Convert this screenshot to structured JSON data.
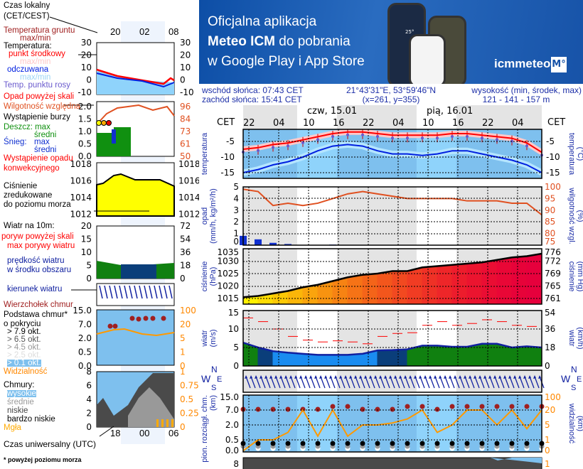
{
  "banner": {
    "line1": "Oficjalna aplikacja",
    "line2_bold": "Meteo ICM",
    "line2_rest": " do pobrania",
    "line3": "w Google Play i App Store",
    "logo_text": "icmmeteo",
    "logo_badge": "M°",
    "phone_temp": "25°"
  },
  "info": {
    "sunrise": "wschód słońca: 07:43 CET",
    "sunset": "zachód słońca: 15:41 CET",
    "coords": "21°43'31\"E, 53°59'46\"N",
    "grid": "(x=261,  y=355)",
    "elev_label": "wysokość (min, środek, max)",
    "elev_values": "121 - 141 - 157 m"
  },
  "axis": {
    "cet": "CET",
    "days": [
      "czw, 15.01",
      "pią, 16.01"
    ],
    "hours": [
      "22",
      "04",
      "10",
      "16",
      "22",
      "04",
      "10",
      "16",
      "22",
      "04"
    ]
  },
  "labels": {
    "temp_left": "temperatura",
    "temp_right": "(°C)",
    "temp_right2": "temperatura",
    "precip_left": "opad",
    "precip_left2": "(mm/h, kg/m²/h)",
    "precip_right": "(%)",
    "precip_right2": "wilgotność wzgl.",
    "press_left": "ciśnienie",
    "press_left2": "(hPa)",
    "press_right": "(mm Hg)",
    "press_right2": "ciśnienie",
    "wind_left": "wiatr",
    "wind_left2": "(m/s)",
    "wind_right": "(km/h)",
    "wind_right2": "wiatr",
    "compass": {
      "w": "W",
      "s": "S",
      "n": "N",
      "e": "E"
    },
    "cloud_left": "pion. rozciągł. chm.",
    "cloud_left2": "(km)",
    "cloud_right": "(km)",
    "cloud_right2": "widzialność",
    "cloud_left_cut": "e"
  },
  "legend": {
    "local_time": "Czas lokalny",
    "local_time2": "(CET/CEST)",
    "mini_hours": [
      "20",
      "02",
      "08"
    ],
    "ground_temp": "Temperatura gruntu",
    "ground_temp2": "max/min",
    "temperature": "Temperatura:",
    "mid_point": "punkt środkowy",
    "maxmin": "max/min",
    "feels": "odczuwana",
    "maxmin2": "max/min",
    "dew": "Temp. punktu rosy",
    "precip_over": "Opad powyżej skali",
    "humidity": "Wilgotność względna",
    "storm": "Wystąpienie burzy",
    "rain": "Deszcz: max",
    "rain_mean": "średni",
    "snow": "Śnieg:",
    "snow_max": "max",
    "snow_mean": "średni",
    "conv": "Wystąpienie opadu",
    "conv2": "konwekcyjnego",
    "pressure": "Ciśnienie",
    "pressure2": "zredukowane",
    "pressure3": "do poziomu morza",
    "wind10": "Wiatr na 10m:",
    "gust_over": "poryw powyżej skali",
    "gust_max": "max porywy wiatru",
    "wind_speed": "prędkość wiatru",
    "wind_speed2": "w środku obszaru",
    "wind_dir": "kierunek wiatru",
    "cloud_top": "Wierzchołek chmur",
    "cloud_base": "Podstawa chmur*",
    "cloud_base2": "o pokryciu",
    "okt": [
      "> 7.9 okt.",
      "> 6.5 okt.",
      "> 4.5 okt.",
      "> 2.5 okt.",
      "> 0.1 okt."
    ],
    "visibility": "Widzialność",
    "clouds": "Chmury:",
    "high": "wysokie",
    "mid": "średnie",
    "low": "niskie",
    "vlow": "bardzo niskie",
    "fog": "Mgła",
    "utc": "Czas uniwersalny (UTC)",
    "utc_hours": [
      "18",
      "00",
      "06"
    ],
    "footnote": "* powyżej poziomu morza",
    "ticks": {
      "temp": [
        "30",
        "20",
        "10",
        "0",
        "-10"
      ],
      "precip": [
        "2.0",
        "1.5",
        "1.0",
        "0.5",
        "0.0"
      ],
      "hum": [
        "96",
        "84",
        "73",
        "61",
        "50"
      ],
      "press": [
        "1018",
        "1016",
        "1014",
        "1012"
      ],
      "wind": [
        "20",
        "15",
        "10",
        "5",
        "0"
      ],
      "windkmh": [
        "72",
        "54",
        "36",
        "18",
        "0"
      ],
      "cloud": [
        "15.0",
        "7.0",
        "2.0",
        "0.5",
        "0.0"
      ],
      "vis": [
        "100",
        "20",
        "5",
        "1",
        "0"
      ],
      "ctype": [
        "8",
        "6",
        "4",
        "2",
        "0"
      ],
      "ctype_r": [
        "1",
        "0.75",
        "0.5",
        "0.25",
        "0"
      ]
    }
  },
  "chart_data": [
    {
      "type": "line",
      "title": "",
      "xlabel": "",
      "ylabel": "temperatura (°C)",
      "x_start": "śr 21:00",
      "x_step_hours": 3,
      "ylim": [
        -17,
        0
      ],
      "yticks": [
        -5,
        -10,
        -15
      ],
      "series": [
        {
          "name": "punkt środkowy",
          "color": "#ff0000",
          "values": [
            -7.5,
            -7,
            -6,
            -5.5,
            -4.5,
            -3.5,
            -2.5,
            -2,
            -2,
            -2.5,
            -3,
            -3,
            -3,
            -3,
            -2.5,
            -2.5,
            -3,
            -3.5,
            -4,
            -5.5,
            -8.5
          ]
        },
        {
          "name": "odczuwana",
          "color": "#0020e0",
          "values": [
            -15,
            -14,
            -12.5,
            -11.5,
            -10,
            -8,
            -6.5,
            -6,
            -6.5,
            -8,
            -9,
            -9,
            -9.5,
            -9,
            -8,
            -8,
            -9,
            -10,
            -11,
            -12.5,
            -15
          ]
        }
      ]
    },
    {
      "type": "bar+line",
      "ylabel": "opad (mm/h, kg/m²/h)",
      "y2label": "(%) wilgotność wzgl.",
      "ylim": [
        0,
        5
      ],
      "y2lim": [
        75,
        100
      ],
      "yticks": [
        0,
        1,
        2,
        3,
        4,
        5
      ],
      "y2ticks": [
        75,
        80,
        85,
        90,
        95,
        100
      ],
      "precip": [
        0.8,
        0.5,
        0.2,
        0.1,
        0,
        0,
        0.05,
        0,
        0,
        0,
        0,
        0,
        0,
        0,
        0,
        0.02,
        0,
        0,
        0,
        0,
        0
      ],
      "humidity": [
        99,
        98,
        92,
        93,
        92,
        93,
        95,
        97,
        98,
        97,
        96,
        95,
        95,
        95,
        95,
        94,
        94,
        94,
        93,
        93,
        88
      ]
    },
    {
      "type": "area",
      "ylabel": "ciśnienie (hPa)",
      "y2label": "(mm Hg)",
      "ylim": [
        1013,
        1035
      ],
      "yticks": [
        1015,
        1020,
        1025,
        1030,
        1035
      ],
      "y2ticks": [
        761,
        765,
        769,
        772,
        776
      ],
      "values": [
        1015.5,
        1016,
        1017,
        1018,
        1019.5,
        1020.5,
        1022,
        1023.5,
        1024.5,
        1025,
        1026,
        1026,
        1027.5,
        1028,
        1028.5,
        1029,
        1029.5,
        1030.5,
        1031.5,
        1032,
        1033
      ]
    },
    {
      "type": "line",
      "ylabel": "wiatr (m/s)",
      "y2label": "(km/h)",
      "ylim": [
        0,
        15
      ],
      "yticks": [
        0,
        5,
        10,
        15
      ],
      "y2ticks": [
        0,
        18,
        36,
        54
      ],
      "series": [
        {
          "name": "prędkość wiatru",
          "values": [
            6.3,
            5,
            4,
            3.6,
            3.3,
            3,
            3,
            3,
            3.3,
            4.2,
            4.3,
            4.5,
            5.5,
            5.5,
            5.2,
            5.2,
            6,
            6,
            5,
            5.3,
            5
          ]
        },
        {
          "name": "max porywy wiatru",
          "values": [
            13,
            12,
            10,
            8,
            7,
            6.5,
            6.8,
            6.5,
            6,
            8,
            8.8,
            9,
            11,
            12,
            11,
            11.5,
            12.5,
            12,
            11,
            10.7,
            10.5
          ]
        }
      ]
    },
    {
      "type": "scatter+line",
      "ylabel": "pion. rozciągł. chm. (km)",
      "y2label": "(km) widzialność",
      "yticks": [
        "0.0",
        "0.5",
        "2.0",
        "7.0",
        "15.0"
      ],
      "y2ticks": [
        "0",
        "1",
        "5",
        "20",
        "100"
      ],
      "visibility": [
        0.1,
        1,
        1,
        3,
        20,
        2,
        20,
        2,
        5,
        5,
        7,
        11,
        20,
        3,
        5,
        20,
        20,
        5,
        20,
        4,
        20
      ],
      "cloud_top": [
        10,
        6,
        10,
        10,
        11,
        11,
        12,
        12,
        11,
        11,
        11,
        12,
        12,
        11,
        12,
        13,
        13,
        13,
        13,
        13,
        13
      ]
    }
  ]
}
